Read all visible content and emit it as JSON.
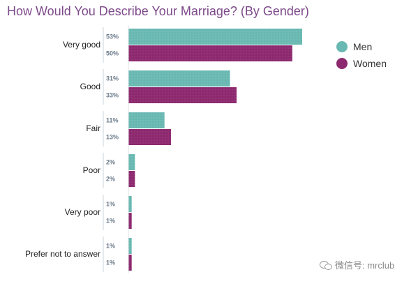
{
  "chart_data": {
    "type": "bar",
    "orientation": "horizontal",
    "title": "How Would You Describe Your Marriage? (By Gender)",
    "categories": [
      "Very good",
      "Good",
      "Fair",
      "Poor",
      "Very poor",
      "Prefer not to answer"
    ],
    "series": [
      {
        "name": "Men",
        "values": [
          53,
          31,
          11,
          2,
          1,
          1
        ],
        "labels": [
          "53%",
          "31%",
          "11%",
          "2%",
          "1%",
          "1%"
        ],
        "color": "#69b8b2"
      },
      {
        "name": "Women",
        "values": [
          50,
          33,
          13,
          2,
          1,
          1
        ],
        "labels": [
          "50%",
          "33%",
          "13%",
          "2%",
          "1%",
          "1%"
        ],
        "color": "#8d2a6f"
      }
    ],
    "xlim": [
      0,
      53
    ],
    "grid": false,
    "legend": "top-right"
  },
  "watermark": {
    "text": "微信号: mrclub",
    "icon": "wechat-icon"
  }
}
